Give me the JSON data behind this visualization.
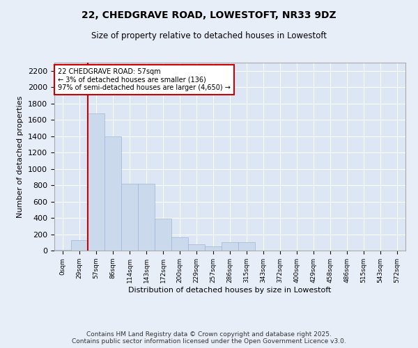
{
  "title_line1": "22, CHEDGRAVE ROAD, LOWESTOFT, NR33 9DZ",
  "title_line2": "Size of property relative to detached houses in Lowestoft",
  "xlabel": "Distribution of detached houses by size in Lowestoft",
  "ylabel": "Number of detached properties",
  "annotation_line1": "22 CHEDGRAVE ROAD: 57sqm",
  "annotation_line2": "← 3% of detached houses are smaller (136)",
  "annotation_line3": "97% of semi-detached houses are larger (4,650) →",
  "bar_labels": [
    "0sqm",
    "29sqm",
    "57sqm",
    "86sqm",
    "114sqm",
    "143sqm",
    "172sqm",
    "200sqm",
    "229sqm",
    "257sqm",
    "286sqm",
    "315sqm",
    "343sqm",
    "372sqm",
    "400sqm",
    "429sqm",
    "458sqm",
    "486sqm",
    "515sqm",
    "543sqm",
    "572sqm"
  ],
  "bar_values": [
    10,
    130,
    1680,
    1400,
    820,
    820,
    390,
    165,
    80,
    50,
    100,
    100,
    0,
    0,
    0,
    0,
    0,
    0,
    0,
    0,
    0
  ],
  "bar_color": "#cad9ec",
  "bar_edge_color": "#9db8d2",
  "vline_color": "#cc0000",
  "vline_bar_index": 2,
  "annotation_box_edgecolor": "#cc0000",
  "background_color": "#e8eef8",
  "plot_bg_color": "#dce6f5",
  "grid_color": "#ffffff",
  "ylim": [
    0,
    2300
  ],
  "yticks": [
    0,
    200,
    400,
    600,
    800,
    1000,
    1200,
    1400,
    1600,
    1800,
    2000,
    2200
  ],
  "footer_line1": "Contains HM Land Registry data © Crown copyright and database right 2025.",
  "footer_line2": "Contains public sector information licensed under the Open Government Licence v3.0."
}
